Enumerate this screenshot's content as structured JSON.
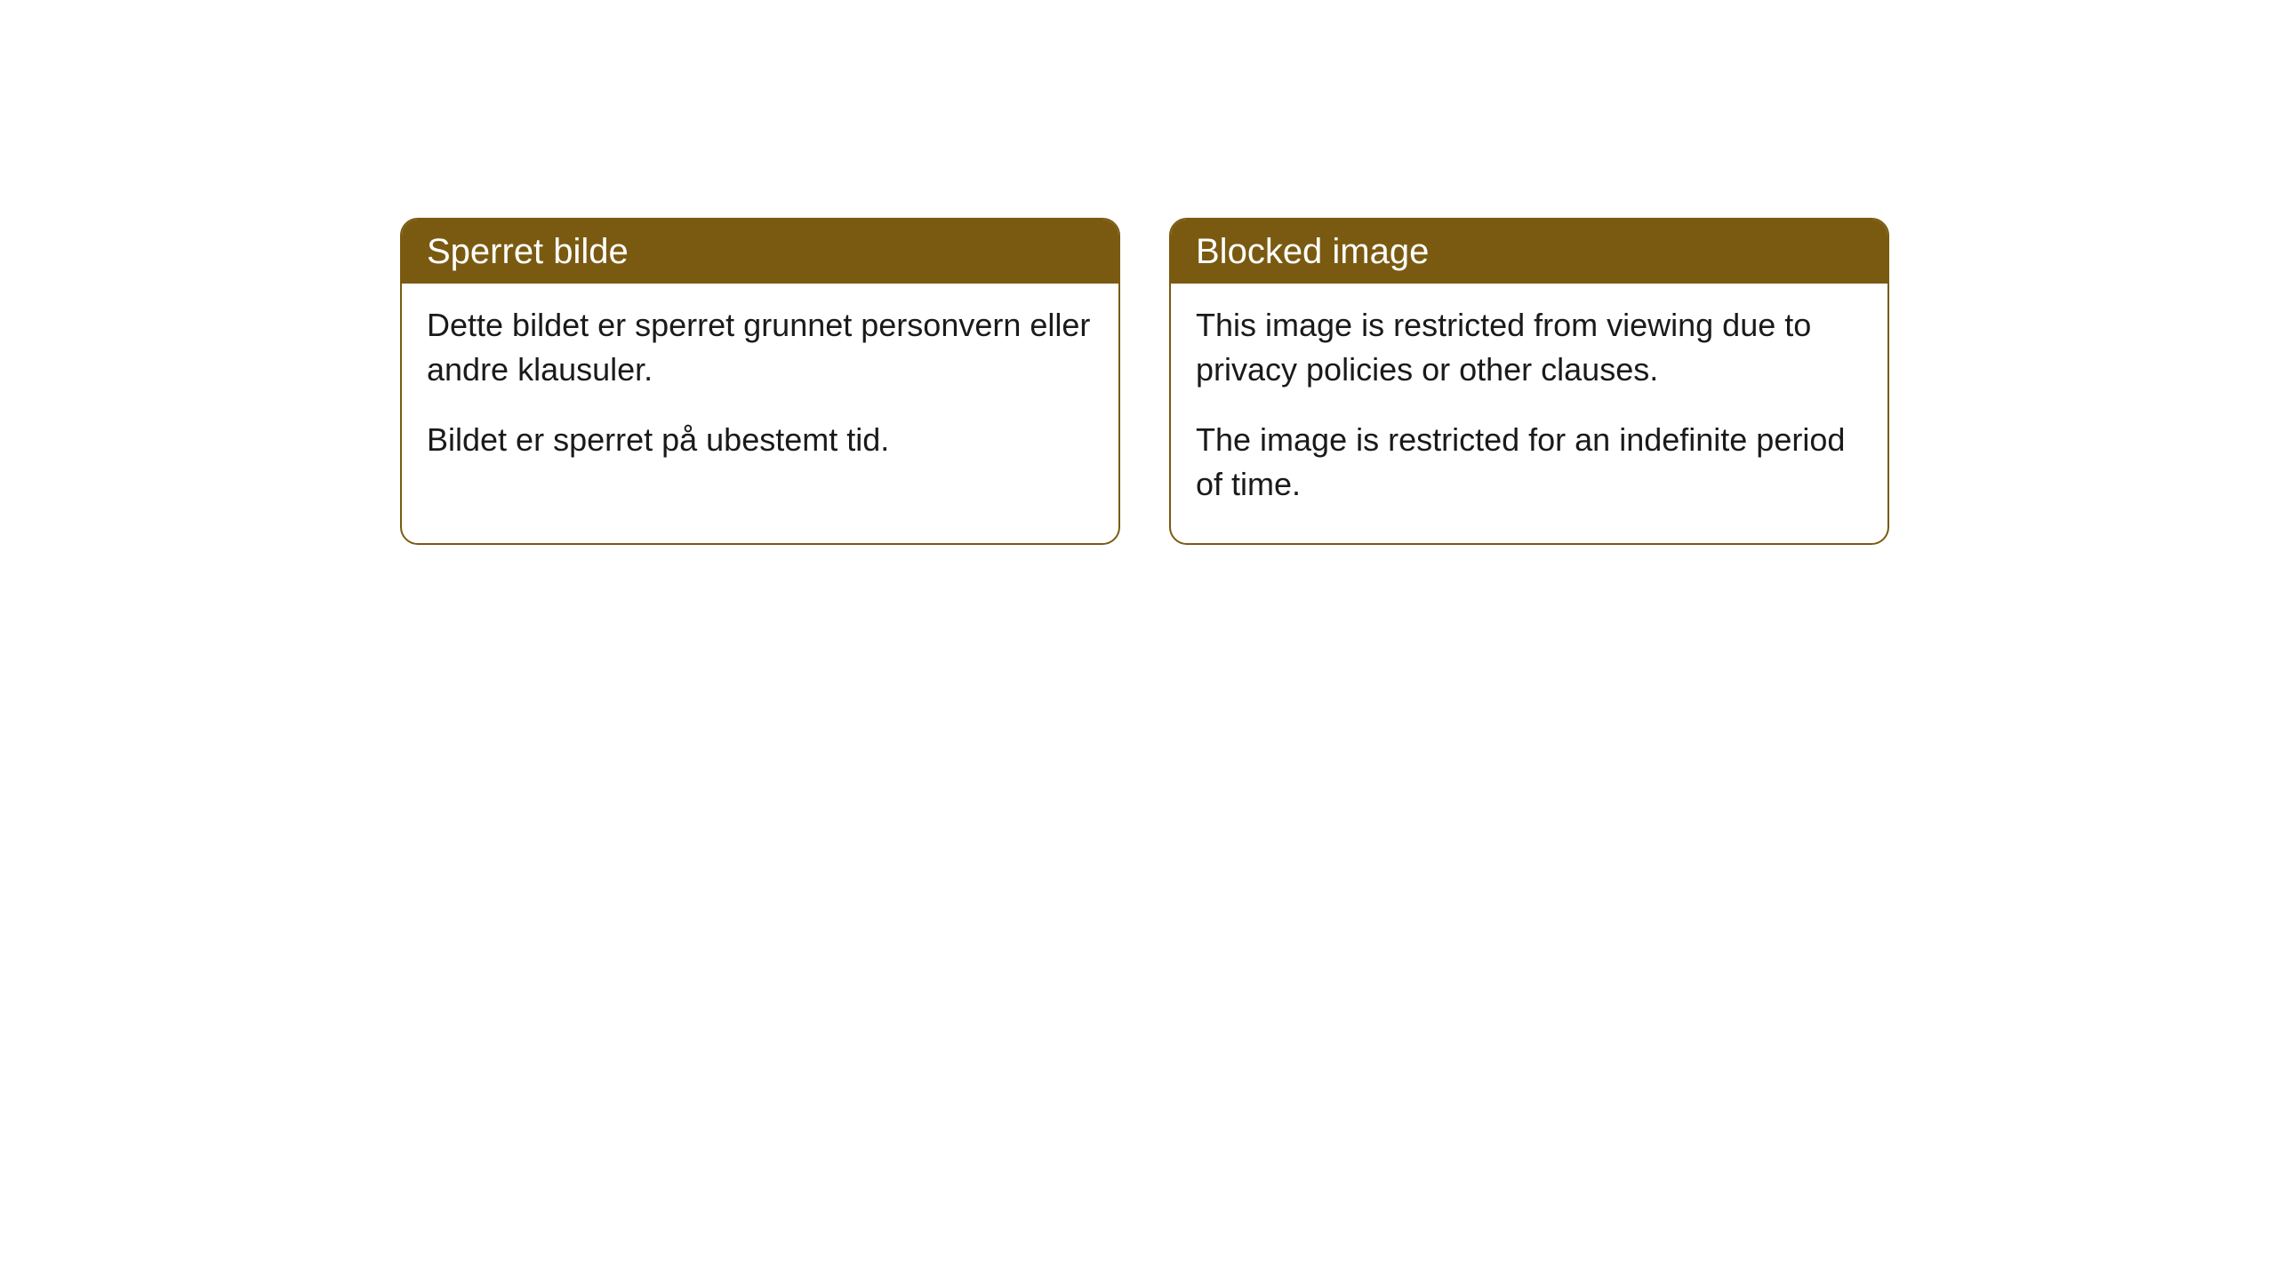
{
  "cards": [
    {
      "title": "Sperret bilde",
      "paragraph1": "Dette bildet er sperret grunnet personvern eller andre klausuler.",
      "paragraph2": "Bildet er sperret på ubestemt tid."
    },
    {
      "title": "Blocked image",
      "paragraph1": "This image is restricted from viewing due to privacy policies or other clauses.",
      "paragraph2": "The image is restricted for an indefinite period of time."
    }
  ],
  "styling": {
    "header_background": "#7a5a11",
    "header_text_color": "#ffffff",
    "border_color": "#7a5a11",
    "body_background": "#ffffff",
    "body_text_color": "#1a1a1a",
    "border_radius": 20,
    "header_fontsize": 40,
    "body_fontsize": 36
  }
}
